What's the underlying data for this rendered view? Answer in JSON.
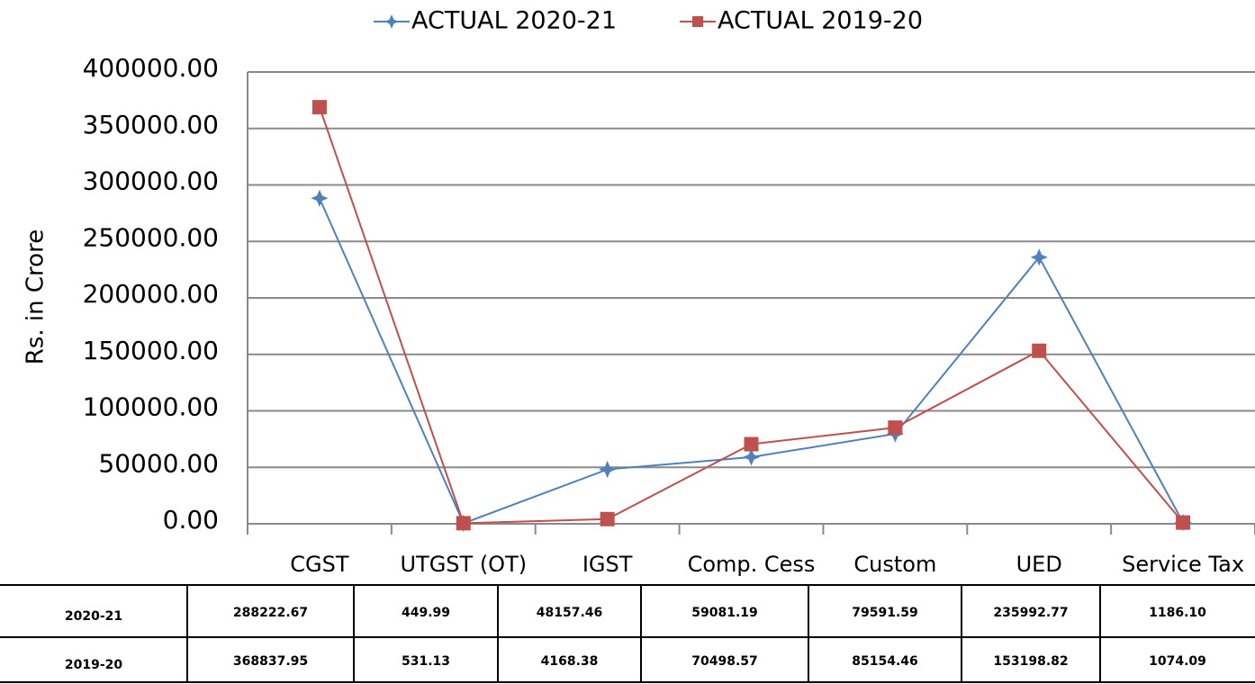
{
  "chart_data": {
    "type": "line",
    "categories": [
      "CGST",
      "UTGST (OT)",
      "IGST",
      "Comp. Cess",
      "Custom",
      "UED",
      "Service Tax"
    ],
    "series": [
      {
        "name": "ACTUAL 2020-21",
        "color": "#4f81bd",
        "marker": "star",
        "values": [
          288222.67,
          449.99,
          48157.46,
          59081.19,
          79591.59,
          235992.77,
          1186.1
        ],
        "value_labels": [
          "288222.67",
          "449.99",
          "48157.46",
          "59081.19",
          "79591.59",
          "235992.77",
          "1186.10"
        ]
      },
      {
        "name": "ACTUAL 2019-20",
        "color": "#c0504d",
        "marker": "square",
        "values": [
          368837.95,
          531.13,
          4168.38,
          70498.57,
          85154.46,
          153198.82,
          1074.09
        ],
        "value_labels": [
          "368837.95",
          "531.13",
          "4168.38",
          "70498.57",
          "85154.46",
          "153198.82",
          "1074.09"
        ]
      }
    ],
    "table_row_labels": [
      "2020-21",
      "2019-20"
    ],
    "y_label": "Rs. in Crore",
    "ylim": [
      0,
      400000
    ],
    "yticks": [
      {
        "value": 0,
        "label": "0.00"
      },
      {
        "value": 50000,
        "label": "50000.00"
      },
      {
        "value": 100000,
        "label": "100000.00"
      },
      {
        "value": 150000,
        "label": "150000.00"
      },
      {
        "value": 200000,
        "label": "200000.00"
      },
      {
        "value": 250000,
        "label": "250000.00"
      },
      {
        "value": 300000,
        "label": "300000.00"
      },
      {
        "value": 350000,
        "label": "350000.00"
      },
      {
        "value": 400000,
        "label": "400000.00"
      }
    ],
    "grid": true,
    "legend": "top"
  }
}
